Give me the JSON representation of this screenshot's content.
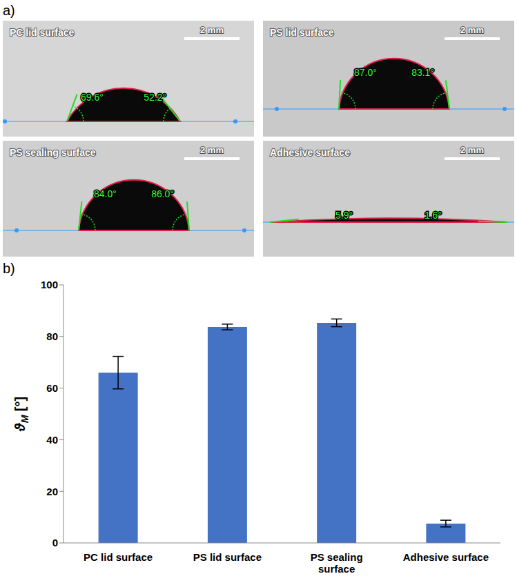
{
  "figure": {
    "panel_labels": [
      "a)",
      "b)"
    ],
    "images": [
      {
        "title": "PC lid surface",
        "scale_bar": "2 mm",
        "angles": [
          {
            "value": 69.6,
            "label": "69.6°"
          },
          {
            "value": 52.2,
            "label": "52.2°"
          }
        ]
      },
      {
        "title": "PS lid surface",
        "scale_bar": "2 mm",
        "angles": [
          {
            "value": 87.0,
            "label": "87.0°"
          },
          {
            "value": 83.1,
            "label": "83.1°"
          }
        ]
      },
      {
        "title": "PS sealing surface",
        "scale_bar": "2 mm",
        "angles": [
          {
            "value": 84.0,
            "label": "84.0°"
          },
          {
            "value": 86.0,
            "label": "86.0°"
          }
        ]
      },
      {
        "title": "Adhesive surface",
        "scale_bar": "2 mm",
        "angles": [
          {
            "value": 5.9,
            "label": "5.9°"
          },
          {
            "value": 1.6,
            "label": "1.6°"
          }
        ]
      }
    ]
  },
  "chart_data": {
    "type": "bar",
    "ylabel": "ϑM [°]",
    "categories": [
      "PC lid surface",
      "PS lid surface",
      "PS sealing surface",
      "Adhesive surface"
    ],
    "values": [
      66.0,
      83.7,
      85.3,
      7.5
    ],
    "errors": [
      6.3,
      1.1,
      1.5,
      1.3
    ],
    "color": "#4472c4",
    "ylim": [
      0,
      100
    ],
    "yticks": [
      0,
      20,
      40,
      60,
      80,
      100
    ],
    "grid": false
  }
}
